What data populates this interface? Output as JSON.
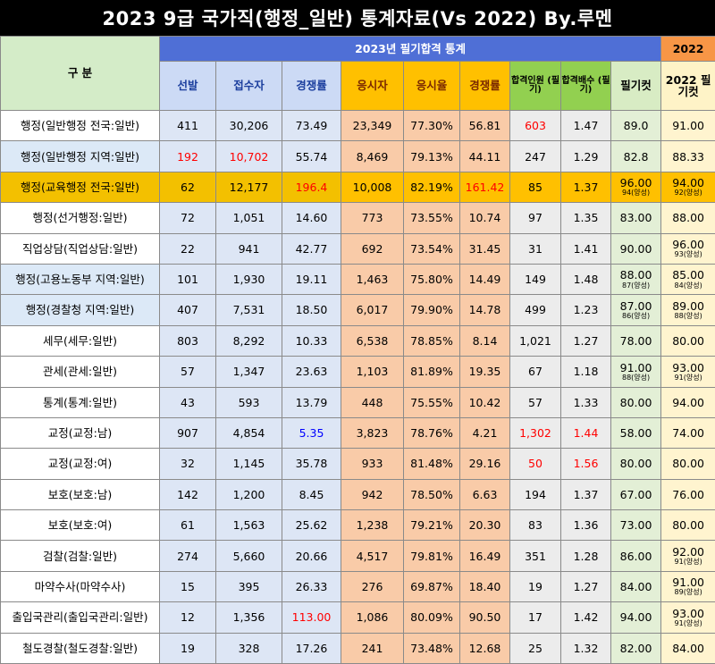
{
  "title": "2023 9급 국가직(행정_일반) 통계자료(Vs 2022) By.루멘",
  "header": {
    "gubun": "구 분",
    "group_2023": "2023년 필기합격 통계",
    "group_2022": "2022",
    "columns": [
      "선발",
      "접수자",
      "경쟁률",
      "응시자",
      "응시율",
      "경쟁률",
      "합격인원 (필기)",
      "합격배수 (필기)",
      "필기컷",
      "2022 필기컷"
    ]
  },
  "rows": [
    {
      "name": "행정(일반행정 전국:일반)",
      "v": [
        "411",
        "30,206",
        "73.49",
        "23,349",
        "77.30%",
        "56.81",
        "603",
        "1.47",
        "89.0",
        "91.00"
      ],
      "red": [
        6
      ],
      "blue": [],
      "alt": false,
      "hl": false,
      "sub": [
        "",
        ""
      ]
    },
    {
      "name": "행정(일반행정 지역:일반)",
      "v": [
        "192",
        "10,702",
        "55.74",
        "8,469",
        "79.13%",
        "44.11",
        "247",
        "1.29",
        "82.8",
        "88.33"
      ],
      "red": [
        0,
        1
      ],
      "blue": [],
      "alt": true,
      "hl": false,
      "sub": [
        "",
        ""
      ]
    },
    {
      "name": "행정(교육행정 전국:일반)",
      "v": [
        "62",
        "12,177",
        "196.4",
        "10,008",
        "82.19%",
        "161.42",
        "85",
        "1.37",
        "96.00",
        "94.00"
      ],
      "red": [
        2,
        5
      ],
      "blue": [],
      "alt": false,
      "hl": true,
      "sub": [
        "94(양성)",
        "92(양성)"
      ]
    },
    {
      "name": "행정(선거행정:일반)",
      "v": [
        "72",
        "1,051",
        "14.60",
        "773",
        "73.55%",
        "10.74",
        "97",
        "1.35",
        "83.00",
        "88.00"
      ],
      "red": [],
      "blue": [],
      "alt": false,
      "hl": false,
      "sub": [
        "",
        ""
      ]
    },
    {
      "name": "직업상담(직업상담:일반)",
      "v": [
        "22",
        "941",
        "42.77",
        "692",
        "73.54%",
        "31.45",
        "31",
        "1.41",
        "90.00",
        "96.00"
      ],
      "red": [],
      "blue": [],
      "alt": false,
      "hl": false,
      "sub": [
        "",
        "93(양성)"
      ]
    },
    {
      "name": "행정(고용노동부 지역:일반)",
      "v": [
        "101",
        "1,930",
        "19.11",
        "1,463",
        "75.80%",
        "14.49",
        "149",
        "1.48",
        "88.00",
        "85.00"
      ],
      "red": [],
      "blue": [],
      "alt": true,
      "hl": false,
      "sub": [
        "87(양성)",
        "84(양성)"
      ]
    },
    {
      "name": "행정(경찰청 지역:일반)",
      "v": [
        "407",
        "7,531",
        "18.50",
        "6,017",
        "79.90%",
        "14.78",
        "499",
        "1.23",
        "87.00",
        "89.00"
      ],
      "red": [],
      "blue": [],
      "alt": true,
      "hl": false,
      "sub": [
        "86(양성)",
        "88(양성)"
      ]
    },
    {
      "name": "세무(세무:일반)",
      "v": [
        "803",
        "8,292",
        "10.33",
        "6,538",
        "78.85%",
        "8.14",
        "1,021",
        "1.27",
        "78.00",
        "80.00"
      ],
      "red": [],
      "blue": [],
      "alt": false,
      "hl": false,
      "sub": [
        "",
        ""
      ]
    },
    {
      "name": "관세(관세:일반)",
      "v": [
        "57",
        "1,347",
        "23.63",
        "1,103",
        "81.89%",
        "19.35",
        "67",
        "1.18",
        "91.00",
        "93.00"
      ],
      "red": [],
      "blue": [],
      "alt": false,
      "hl": false,
      "sub": [
        "88(양성)",
        "91(양성)"
      ]
    },
    {
      "name": "통계(통계:일반)",
      "v": [
        "43",
        "593",
        "13.79",
        "448",
        "75.55%",
        "10.42",
        "57",
        "1.33",
        "80.00",
        "94.00"
      ],
      "red": [],
      "blue": [],
      "alt": false,
      "hl": false,
      "sub": [
        "",
        ""
      ]
    },
    {
      "name": "교정(교정:남)",
      "v": [
        "907",
        "4,854",
        "5.35",
        "3,823",
        "78.76%",
        "4.21",
        "1,302",
        "1.44",
        "58.00",
        "74.00"
      ],
      "red": [
        6,
        7
      ],
      "blue": [
        2
      ],
      "alt": false,
      "hl": false,
      "sub": [
        "",
        ""
      ]
    },
    {
      "name": "교정(교정:여)",
      "v": [
        "32",
        "1,145",
        "35.78",
        "933",
        "81.48%",
        "29.16",
        "50",
        "1.56",
        "80.00",
        "80.00"
      ],
      "red": [
        6,
        7
      ],
      "blue": [],
      "alt": false,
      "hl": false,
      "sub": [
        "",
        ""
      ]
    },
    {
      "name": "보호(보호:남)",
      "v": [
        "142",
        "1,200",
        "8.45",
        "942",
        "78.50%",
        "6.63",
        "194",
        "1.37",
        "67.00",
        "76.00"
      ],
      "red": [],
      "blue": [],
      "alt": false,
      "hl": false,
      "sub": [
        "",
        ""
      ]
    },
    {
      "name": "보호(보호:여)",
      "v": [
        "61",
        "1,563",
        "25.62",
        "1,238",
        "79.21%",
        "20.30",
        "83",
        "1.36",
        "73.00",
        "80.00"
      ],
      "red": [],
      "blue": [],
      "alt": false,
      "hl": false,
      "sub": [
        "",
        ""
      ]
    },
    {
      "name": "검찰(검찰:일반)",
      "v": [
        "274",
        "5,660",
        "20.66",
        "4,517",
        "79.81%",
        "16.49",
        "351",
        "1.28",
        "86.00",
        "92.00"
      ],
      "red": [],
      "blue": [],
      "alt": false,
      "hl": false,
      "sub": [
        "",
        "91(양성)"
      ]
    },
    {
      "name": "마약수사(마약수사)",
      "v": [
        "15",
        "395",
        "26.33",
        "276",
        "69.87%",
        "18.40",
        "19",
        "1.27",
        "84.00",
        "91.00"
      ],
      "red": [],
      "blue": [],
      "alt": false,
      "hl": false,
      "sub": [
        "",
        "89(양성)"
      ]
    },
    {
      "name": "출입국관리(출입국관리:일반)",
      "v": [
        "12",
        "1,356",
        "113.00",
        "1,086",
        "80.09%",
        "90.50",
        "17",
        "1.42",
        "94.00",
        "93.00"
      ],
      "red": [
        2
      ],
      "blue": [],
      "alt": false,
      "hl": false,
      "sub": [
        "",
        "91(양성)"
      ]
    },
    {
      "name": "철도경찰(철도경찰:일반)",
      "v": [
        "19",
        "328",
        "17.26",
        "241",
        "73.48%",
        "12.68",
        "25",
        "1.32",
        "82.00",
        "84.00"
      ],
      "red": [],
      "blue": [],
      "alt": false,
      "hl": false,
      "sub": [
        "",
        ""
      ]
    }
  ]
}
